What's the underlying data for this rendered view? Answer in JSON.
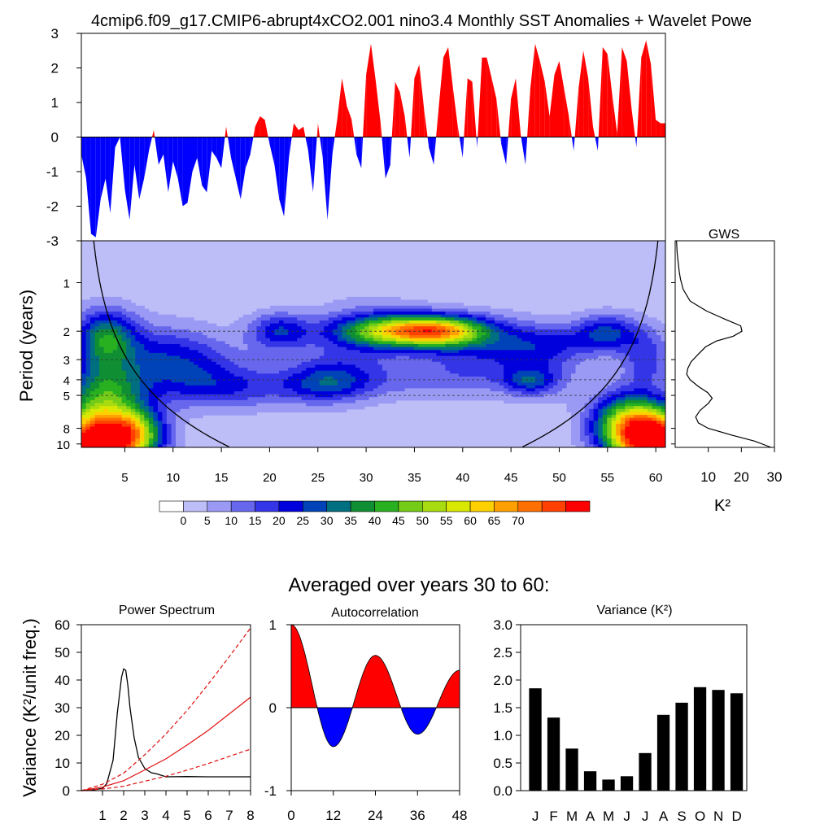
{
  "page": {
    "title": "4cmip6.f09_g17.CMIP6-abrupt4xCO2.001 nino3.4 Monthly SST Anomalies + Wavelet Powe",
    "lower_title": "Averaged over years 30 to 60:"
  },
  "colors": {
    "positive": "#ff0000",
    "negative": "#0000ff",
    "wavelet_palette": [
      "#ffffff",
      "#bdbdf8",
      "#9a9af4",
      "#6767ee",
      "#3535e8",
      "#0000dc",
      "#0043b8",
      "#006f80",
      "#108e34",
      "#28b020",
      "#74cc18",
      "#a8dc10",
      "#d8e800",
      "#ffd000",
      "#ffa000",
      "#ff7000",
      "#ff4000",
      "#ff0000"
    ]
  },
  "chart_data": [
    {
      "id": "sst_anomalies",
      "type": "area",
      "title": "",
      "xlabel": "",
      "ylabel": "",
      "xlim": [
        0.5,
        61
      ],
      "ylim": [
        -3,
        3
      ],
      "yticks": [
        "3",
        "2",
        "1",
        "0",
        "-1",
        "-2",
        "-3"
      ],
      "x": [
        0.5,
        1,
        1.5,
        2,
        2.5,
        3,
        3.5,
        4,
        4.5,
        5,
        5.5,
        6,
        6.5,
        7,
        7.5,
        8,
        8.5,
        9,
        9.5,
        10,
        10.5,
        11,
        11.5,
        12,
        12.5,
        13,
        13.5,
        14,
        14.5,
        15,
        15.5,
        16,
        16.5,
        17,
        17.5,
        18,
        18.5,
        19,
        19.5,
        20,
        20.5,
        21,
        21.5,
        22,
        22.5,
        23,
        23.5,
        24,
        24.5,
        25,
        25.5,
        26,
        26.5,
        27,
        27.5,
        28,
        28.5,
        29,
        29.5,
        30,
        30.5,
        31,
        31.5,
        32,
        32.5,
        33,
        33.5,
        34,
        34.5,
        35,
        35.5,
        36,
        36.5,
        37,
        37.5,
        38,
        38.5,
        39,
        39.5,
        40,
        40.5,
        41,
        41.5,
        42,
        42.5,
        43,
        43.5,
        44,
        44.5,
        45,
        45.5,
        46,
        46.5,
        47,
        47.5,
        48,
        48.5,
        49,
        49.5,
        50,
        50.5,
        51,
        51.5,
        52,
        52.5,
        53,
        53.5,
        54,
        54.5,
        55,
        55.5,
        56,
        56.5,
        57,
        57.5,
        58,
        58.5,
        59,
        59.5,
        60,
        60.5,
        61
      ],
      "values": [
        -0.5,
        -1.2,
        -2.8,
        -2.9,
        -1.8,
        -1.2,
        -2.2,
        -0.3,
        0,
        -1.5,
        -2.4,
        -0.8,
        -1.8,
        -1.2,
        -0.4,
        0.2,
        -0.8,
        -0.5,
        -1.6,
        -0.7,
        -1.2,
        -2,
        -1.9,
        -1,
        -0.6,
        -1.4,
        -1.6,
        -0.4,
        -0.6,
        -0.9,
        0.3,
        -0.6,
        -1.2,
        -1.8,
        -0.9,
        -0.5,
        0.3,
        0.6,
        0.5,
        -0.2,
        -0.8,
        -1.8,
        -2.3,
        -0.6,
        0.4,
        0.2,
        0.3,
        -0.4,
        -1.6,
        0.4,
        -0.6,
        -2.4,
        -0.5,
        0.5,
        1.7,
        0.9,
        0.5,
        -0.5,
        -0.9,
        1.8,
        2.7,
        1.6,
        0.4,
        -1.2,
        -0.8,
        1.6,
        1.3,
        0.6,
        -0.6,
        1.7,
        2.1,
        0.8,
        -0.3,
        -0.8,
        0.8,
        2.3,
        2.6,
        1.4,
        0.3,
        -0.6,
        1.7,
        1.6,
        -0.3,
        2.3,
        2.3,
        1.7,
        1.1,
        -0.2,
        -0.8,
        1.1,
        1.7,
        0.1,
        -0.8,
        1.4,
        2.7,
        2.2,
        1.6,
        0.6,
        1.8,
        2.2,
        1.4,
        0.6,
        -0.4,
        1.4,
        2.5,
        1.7,
        0.3,
        -0.4,
        2.6,
        2.4,
        1.2,
        0.1,
        2.6,
        2.2,
        0.8,
        -0.3,
        2.3,
        2.8,
        2.1,
        0.5,
        0.4,
        0.4
      ]
    },
    {
      "id": "wavelet_power",
      "type": "heatmap",
      "title": "",
      "xlabel": "",
      "ylabel": "Period (years)",
      "xlim": [
        0.5,
        61
      ],
      "xticks": [
        5,
        10,
        15,
        20,
        25,
        30,
        35,
        40,
        45,
        50,
        55,
        60
      ],
      "ylim": [
        0.55,
        10.5
      ],
      "yscale": "log",
      "yticks": [
        1,
        2,
        3,
        4,
        5,
        8,
        10
      ],
      "reference_periods": [
        2,
        3,
        4,
        5
      ],
      "colorbar_levels": [
        "0",
        "5",
        "10",
        "15",
        "20",
        "25",
        "30",
        "35",
        "40",
        "45",
        "50",
        "55",
        "60",
        "65",
        "70"
      ]
    },
    {
      "id": "global_wavelet_spectrum",
      "type": "line",
      "title": "GWS",
      "xlabel": "K²",
      "ylabel": "",
      "xlim": [
        0,
        30
      ],
      "xticks": [
        10,
        20,
        30
      ],
      "ylim": [
        0.55,
        10.5
      ],
      "yscale": "log",
      "periods": [
        0.55,
        0.65,
        0.75,
        0.85,
        0.95,
        1.1,
        1.3,
        1.5,
        1.7,
        1.85,
        2.0,
        2.15,
        2.3,
        2.5,
        2.8,
        3.1,
        3.4,
        3.7,
        4.0,
        4.4,
        4.8,
        5.2,
        5.6,
        6.2,
        6.8,
        7.4,
        8.0,
        8.8,
        9.6,
        10.5
      ],
      "power": [
        0.4,
        0.6,
        0.9,
        1.2,
        1.6,
        2.4,
        4.5,
        9.5,
        15.5,
        19.8,
        20.2,
        17.5,
        12.5,
        9.2,
        6.8,
        4.8,
        3.8,
        3.5,
        4.5,
        7.0,
        9.8,
        11.2,
        10.0,
        7.5,
        6.2,
        7.0,
        10.0,
        17.0,
        24.0,
        29.0
      ]
    },
    {
      "id": "power_spectrum",
      "type": "line",
      "title": "Power Spectrum",
      "xlabel": "",
      "ylabel": "Variance (K²/unit freq.)",
      "xlim": [
        0,
        8
      ],
      "ylim": [
        0,
        60
      ],
      "xticks": [
        1,
        2,
        3,
        4,
        5,
        6,
        7,
        8
      ],
      "yticks": [
        0,
        10,
        20,
        30,
        40,
        50,
        60
      ],
      "series": [
        {
          "x": [
            0,
            0.5,
            1,
            1.2,
            1.5,
            1.7,
            1.9,
            2.0,
            2.1,
            2.2,
            2.3,
            2.5,
            2.7,
            3.0,
            3.3,
            3.6,
            4,
            5,
            6,
            7,
            8
          ],
          "values": [
            0,
            0.2,
            0.8,
            2.5,
            11,
            28,
            41,
            44,
            43.5,
            38,
            30,
            19,
            12,
            8,
            6.5,
            6,
            5,
            5.1,
            5,
            5,
            5
          ],
          "color": "#000000",
          "dash": ""
        },
        {
          "x": [
            0,
            1,
            2,
            3,
            4,
            5,
            6,
            7,
            8
          ],
          "values": [
            0,
            1.3,
            3.6,
            7.5,
            11.5,
            16.5,
            21.8,
            27.8,
            33.8
          ],
          "color": "#e01010",
          "dash": ""
        },
        {
          "x": [
            0,
            1,
            2,
            3,
            4,
            5,
            6,
            7,
            8
          ],
          "values": [
            0,
            2.3,
            6.3,
            13,
            20.5,
            29,
            38.5,
            48.5,
            58.8
          ],
          "color": "#e01010",
          "dash": "5,3"
        },
        {
          "x": [
            0,
            1,
            2,
            3,
            4,
            5,
            6,
            7,
            8
          ],
          "values": [
            0,
            0.6,
            1.6,
            3.4,
            5.2,
            7.4,
            9.8,
            12.4,
            15
          ],
          "color": "#e01010",
          "dash": "5,3"
        }
      ]
    },
    {
      "id": "autocorrelation",
      "type": "area",
      "title": "Autocorrelation",
      "xlabel": "",
      "ylabel": "",
      "xlim": [
        0,
        48
      ],
      "ylim": [
        -1,
        1
      ],
      "xticks": [
        0,
        12,
        24,
        36,
        48
      ],
      "yticks": [
        1,
        0,
        -1
      ],
      "peaks": [
        [
          0,
          1
        ],
        [
          12,
          -0.47
        ],
        [
          24,
          0.63
        ],
        [
          36,
          -0.32
        ],
        [
          48,
          0.45
        ]
      ]
    },
    {
      "id": "monthly_variance",
      "type": "bar",
      "title": "Variance (K²)",
      "xlabel": "",
      "ylabel": "",
      "categories": [
        "J",
        "F",
        "M",
        "A",
        "M",
        "J",
        "J",
        "A",
        "S",
        "O",
        "N",
        "D"
      ],
      "values": [
        1.85,
        1.32,
        0.76,
        0.35,
        0.2,
        0.26,
        0.68,
        1.37,
        1.59,
        1.87,
        1.82,
        1.76
      ],
      "ylim": [
        0,
        3
      ],
      "yticks": [
        "0.0",
        "0.5",
        "1.0",
        "1.5",
        "2.0",
        "2.5",
        "3.0"
      ]
    }
  ]
}
